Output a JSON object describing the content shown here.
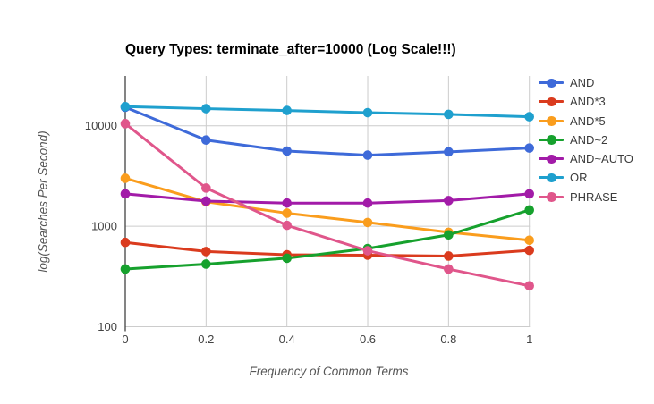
{
  "chart_data": {
    "type": "line",
    "title": "Query Types: terminate_after=10000 (Log Scale!!!)",
    "xlabel": "Frequency of Common Terms",
    "ylabel": "log(Searches Per Second)",
    "yscale": "log",
    "ylim": [
      100,
      31000
    ],
    "grid": true,
    "legend_position": "right",
    "x": [
      0,
      0.2,
      0.4,
      0.6,
      0.8,
      1
    ],
    "xtick_labels": [
      "0",
      "0.2",
      "0.4",
      "0.6",
      "0.8",
      "1"
    ],
    "yticks": [
      100,
      1000,
      10000
    ],
    "ytick_labels": [
      "100",
      "1000",
      "10000"
    ],
    "grid_color": "#cccccc",
    "axis_color": "#333333",
    "tick_text_color": "#424242",
    "series": [
      {
        "name": "AND",
        "color": "#3E6AD9",
        "values": [
          15300,
          7200,
          5600,
          5100,
          5500,
          6000
        ]
      },
      {
        "name": "AND*3",
        "color": "#DA3B1E",
        "values": [
          690,
          560,
          520,
          515,
          505,
          575
        ]
      },
      {
        "name": "AND*5",
        "color": "#FA9D1D",
        "values": [
          3000,
          1750,
          1350,
          1090,
          870,
          725
        ]
      },
      {
        "name": "AND~2",
        "color": "#16A12D",
        "values": [
          375,
          420,
          480,
          600,
          820,
          1450
        ]
      },
      {
        "name": "AND~AUTO",
        "color": "#A21BA8",
        "values": [
          2100,
          1780,
          1700,
          1700,
          1800,
          2100
        ]
      },
      {
        "name": "OR",
        "color": "#1FA0CE",
        "values": [
          15500,
          14800,
          14200,
          13500,
          13000,
          12300
        ]
      },
      {
        "name": "PHRASE",
        "color": "#E0568B",
        "values": [
          10500,
          2400,
          1020,
          570,
          375,
          255
        ]
      }
    ]
  }
}
